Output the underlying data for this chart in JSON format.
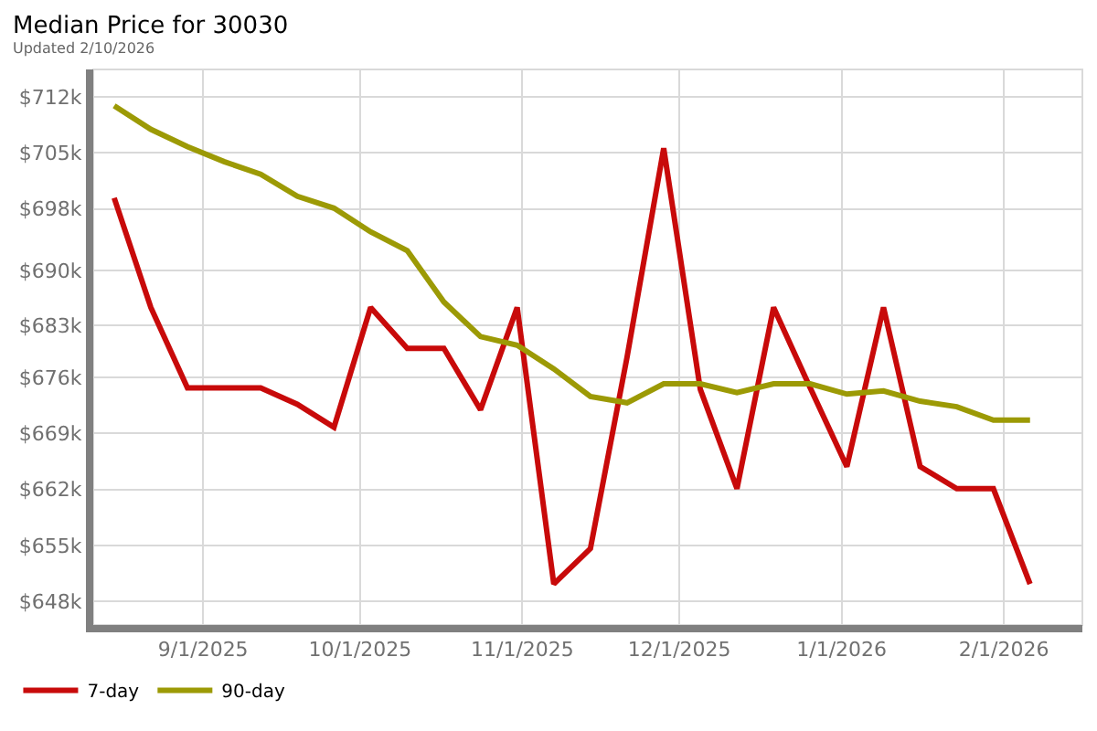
{
  "chart_data": {
    "type": "line",
    "title": "Median Price for 30030",
    "subtitle": "Updated 2/10/2026",
    "x": [
      "2025-08-15",
      "2025-08-22",
      "2025-08-29",
      "2025-09-05",
      "2025-09-12",
      "2025-09-19",
      "2025-09-26",
      "2025-10-03",
      "2025-10-10",
      "2025-10-17",
      "2025-10-24",
      "2025-10-31",
      "2025-11-07",
      "2025-11-14",
      "2025-11-21",
      "2025-11-28",
      "2025-12-05",
      "2025-12-12",
      "2025-12-19",
      "2025-12-26",
      "2026-01-02",
      "2026-01-09",
      "2026-01-16",
      "2026-01-23",
      "2026-01-30",
      "2026-02-06"
    ],
    "series": [
      {
        "name": "7-day",
        "color": "#c80a0a",
        "values": [
          699.2,
          685.3,
          675.1,
          675.1,
          675.1,
          673.0,
          670.1,
          685.3,
          680.1,
          680.1,
          672.3,
          685.3,
          650.2,
          654.7,
          679.0,
          705.5,
          674.9,
          662.3,
          685.3,
          675.1,
          665.1,
          685.3,
          665.1,
          662.3,
          662.3,
          650.2
        ]
      },
      {
        "name": "90-day",
        "color": "#9c9a05",
        "values": [
          710.9,
          707.9,
          705.7,
          703.8,
          702.2,
          699.4,
          697.9,
          694.9,
          692.5,
          686.0,
          681.6,
          680.5,
          677.5,
          674.0,
          673.2,
          675.6,
          675.6,
          674.5,
          675.6,
          675.6,
          674.3,
          674.7,
          673.4,
          672.7,
          671.0,
          671.0
        ]
      }
    ],
    "xlim": [
      "2025-08-11",
      "2026-02-16"
    ],
    "xticks": [
      {
        "value": "2025-09-01",
        "label": "9/1/2025"
      },
      {
        "value": "2025-10-01",
        "label": "10/1/2025"
      },
      {
        "value": "2025-11-01",
        "label": "11/1/2025"
      },
      {
        "value": "2025-12-01",
        "label": "12/1/2025"
      },
      {
        "value": "2026-01-01",
        "label": "1/1/2026"
      },
      {
        "value": "2026-02-01",
        "label": "2/1/2026"
      }
    ],
    "ylim": [
      645,
      715.5
    ],
    "yticks": [
      {
        "value": 648,
        "label": "$648k"
      },
      {
        "value": 655.1,
        "label": "$655k"
      },
      {
        "value": 662.2,
        "label": "$662k"
      },
      {
        "value": 669.3,
        "label": "$669k"
      },
      {
        "value": 676.4,
        "label": "$676k"
      },
      {
        "value": 683,
        "label": "$683k"
      },
      {
        "value": 690,
        "label": "$690k"
      },
      {
        "value": 697.8,
        "label": "$698k"
      },
      {
        "value": 704.9,
        "label": "$705k"
      },
      {
        "value": 712,
        "label": "$712k"
      }
    ],
    "grid": true,
    "legend": "bottom left",
    "marker": "none",
    "line_style": "solid"
  }
}
